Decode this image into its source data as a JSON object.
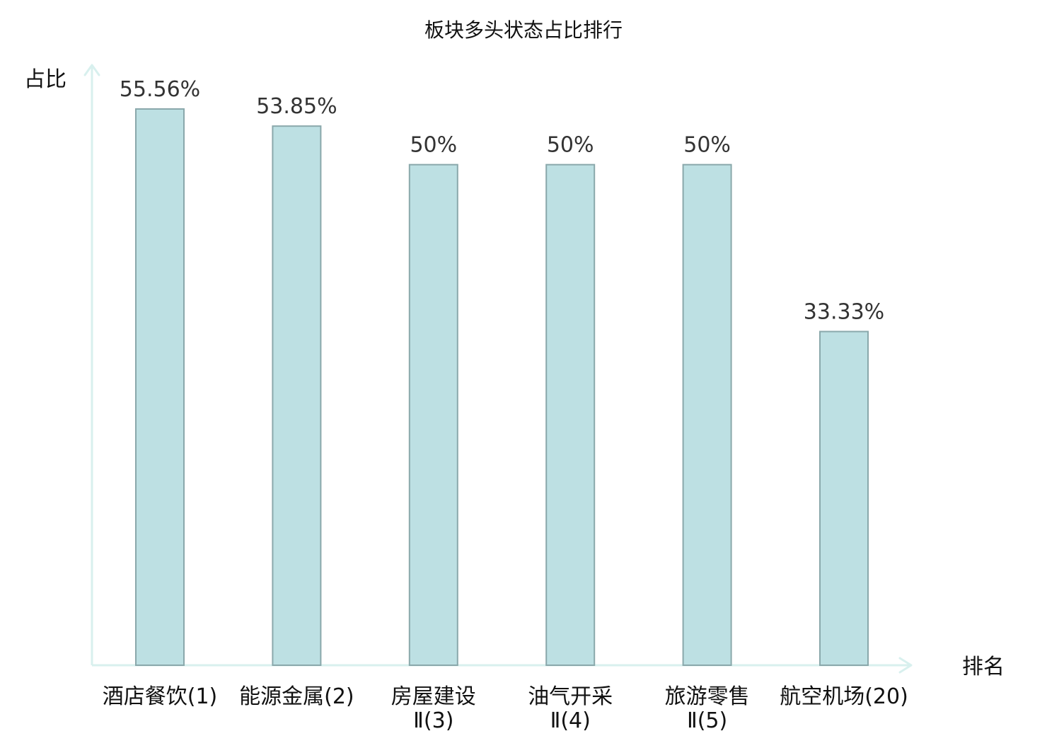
{
  "chart_data": {
    "type": "bar",
    "title": "板块多头状态占比排行",
    "xlabel": "排名",
    "ylabel": "占比",
    "categories": [
      [
        "酒店餐饮(1)"
      ],
      [
        "能源金属(2)"
      ],
      [
        "房屋建设",
        "Ⅱ(3)"
      ],
      [
        "油气开采",
        "Ⅱ(4)"
      ],
      [
        "旅游零售",
        "Ⅱ(5)"
      ],
      [
        "航空机场(20)"
      ]
    ],
    "values": [
      55.56,
      53.85,
      50,
      50,
      50,
      33.33
    ],
    "value_labels": [
      "55.56%",
      "53.85%",
      "50%",
      "50%",
      "50%",
      "33.33%"
    ],
    "ylim": [
      0,
      55.56
    ],
    "grid": false,
    "category_colors": [
      "#111111",
      "#111111",
      "#111111",
      "#111111",
      "#111111",
      "#e01010"
    ]
  },
  "colors": {
    "bar_fill": "#bde0e3",
    "bar_stroke": "#8aa8ab",
    "axis": "#d8f0ee",
    "value_text": "#333333",
    "highlight": "#e01010"
  }
}
